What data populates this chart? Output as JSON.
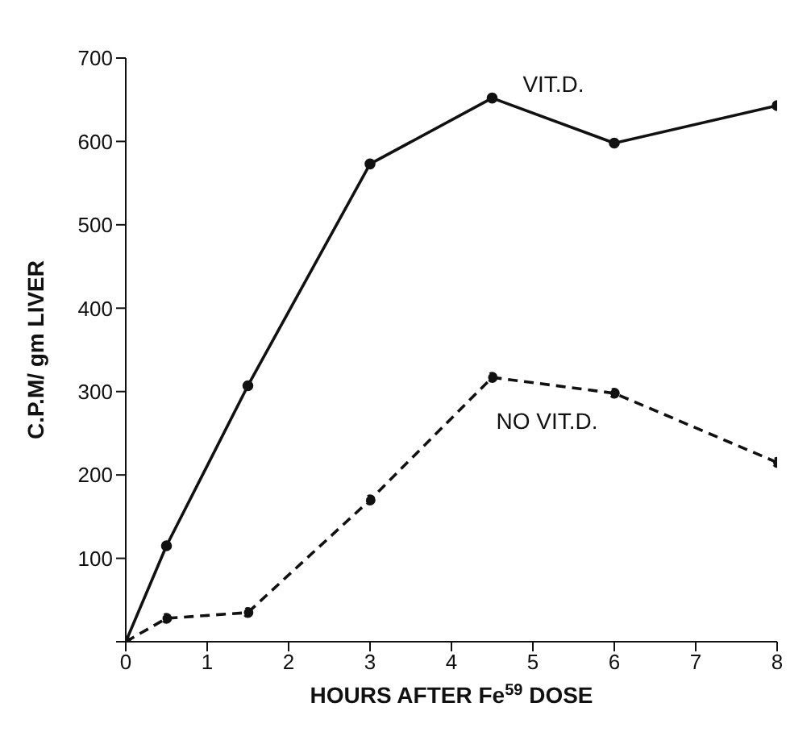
{
  "chart_data": {
    "type": "line",
    "xlabel": "HOURS AFTER Fe$^{59}$ DOSE",
    "ylabel": "C.P.M/ gm LIVER",
    "x": [
      0,
      0.5,
      1.5,
      3,
      4.5,
      6,
      8
    ],
    "series": [
      {
        "name": "VIT.D.",
        "color": "#111111",
        "values": [
          0,
          115,
          307,
          573,
          652,
          598,
          643
        ],
        "line_style": "solid"
      },
      {
        "name": "NO VIT.D.",
        "color": "#111111",
        "values": [
          0,
          28,
          35,
          170,
          317,
          298,
          215
        ],
        "line_style": "dashed"
      }
    ],
    "xlim": [
      0,
      8
    ],
    "xticks": [
      0,
      1,
      2,
      3,
      4,
      5,
      6,
      7,
      8
    ],
    "ylim": [
      0,
      700
    ],
    "yticks": [
      {
        "value": 0,
        "label": null
      },
      100,
      200,
      300,
      400,
      500,
      600,
      700
    ],
    "grid": false,
    "legend": false,
    "marker": "circle"
  }
}
